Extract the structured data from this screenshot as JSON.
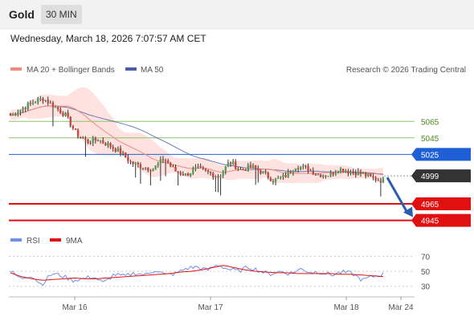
{
  "header": {
    "asset": "Gold",
    "timeframe": "30 MIN",
    "timestamp": "Wednesday, March 18, 2026 7:07:57 AM CET"
  },
  "colors": {
    "ma20": "#f08a80",
    "ma50": "#4a5fa8",
    "bollinger_fill": "#fde2e0",
    "bull": "#4fa356",
    "bear": "#c8473e",
    "resistance": "#8dc36a",
    "pivot": "#1f5fd6",
    "support": "#e01010",
    "current": "#333333",
    "rsi": "#6f8fe8",
    "rsi_ma": "#e01010",
    "forecast_arrow": "#2a5db0"
  },
  "chart_data": [
    {
      "type": "candlestick",
      "title": "",
      "legend": [
        "MA 20 + Bollinger Bands",
        "MA 50"
      ],
      "legend_placement": "top-left",
      "copyright": "Research © 2026 Trading Central",
      "x_ticks": [
        "Mar 16",
        "Mar 17",
        "Mar 18",
        "Mar 24"
      ],
      "y_range": [
        4930,
        5110
      ],
      "levels": [
        {
          "value": 5065,
          "label": "5065",
          "role": "resistance"
        },
        {
          "value": 5045,
          "label": "5045",
          "role": "resistance"
        },
        {
          "value": 5025,
          "label": "5025",
          "role": "pivot"
        },
        {
          "value": 4999,
          "label": "4999",
          "role": "current"
        },
        {
          "value": 4965,
          "label": "4965",
          "role": "support"
        },
        {
          "value": 4945,
          "label": "4945",
          "role": "support"
        }
      ],
      "forecast": {
        "from": 4999,
        "to": 4945
      },
      "price_anchors": [
        5072,
        5080,
        5088,
        5093,
        5083,
        5073,
        5050,
        5040,
        5043,
        5036,
        5028,
        5015,
        5010,
        5007,
        5020,
        5005,
        5000,
        5008,
        5003,
        4998,
        5016,
        5006,
        5010,
        5003,
        4993,
        4998,
        5011,
        5008,
        5001,
        5000,
        5007,
        5004,
        5002,
        4996,
        4993
      ]
    },
    {
      "type": "line",
      "title": "",
      "legend": [
        "RSI",
        "9MA"
      ],
      "legend_placement": "top-left",
      "y_ticks": [
        70,
        50,
        30
      ],
      "y_range": [
        20,
        78
      ],
      "rsi_anchors": [
        50,
        40,
        45,
        32,
        47,
        44,
        38,
        40,
        43,
        34,
        46,
        43,
        48,
        45,
        52,
        45,
        47,
        54,
        56,
        51,
        59,
        53,
        50,
        56,
        51,
        46,
        50,
        47,
        53,
        49,
        49,
        45,
        49,
        47,
        38,
        43,
        46
      ],
      "ma_anchors": [
        48,
        43,
        40,
        38,
        39,
        40,
        41,
        40,
        40,
        41,
        42,
        43,
        44,
        45,
        46,
        47,
        49,
        50,
        52,
        55,
        58,
        55,
        52,
        50,
        49,
        48,
        48,
        47,
        47,
        47,
        47,
        46,
        46,
        45,
        44,
        43
      ]
    }
  ]
}
